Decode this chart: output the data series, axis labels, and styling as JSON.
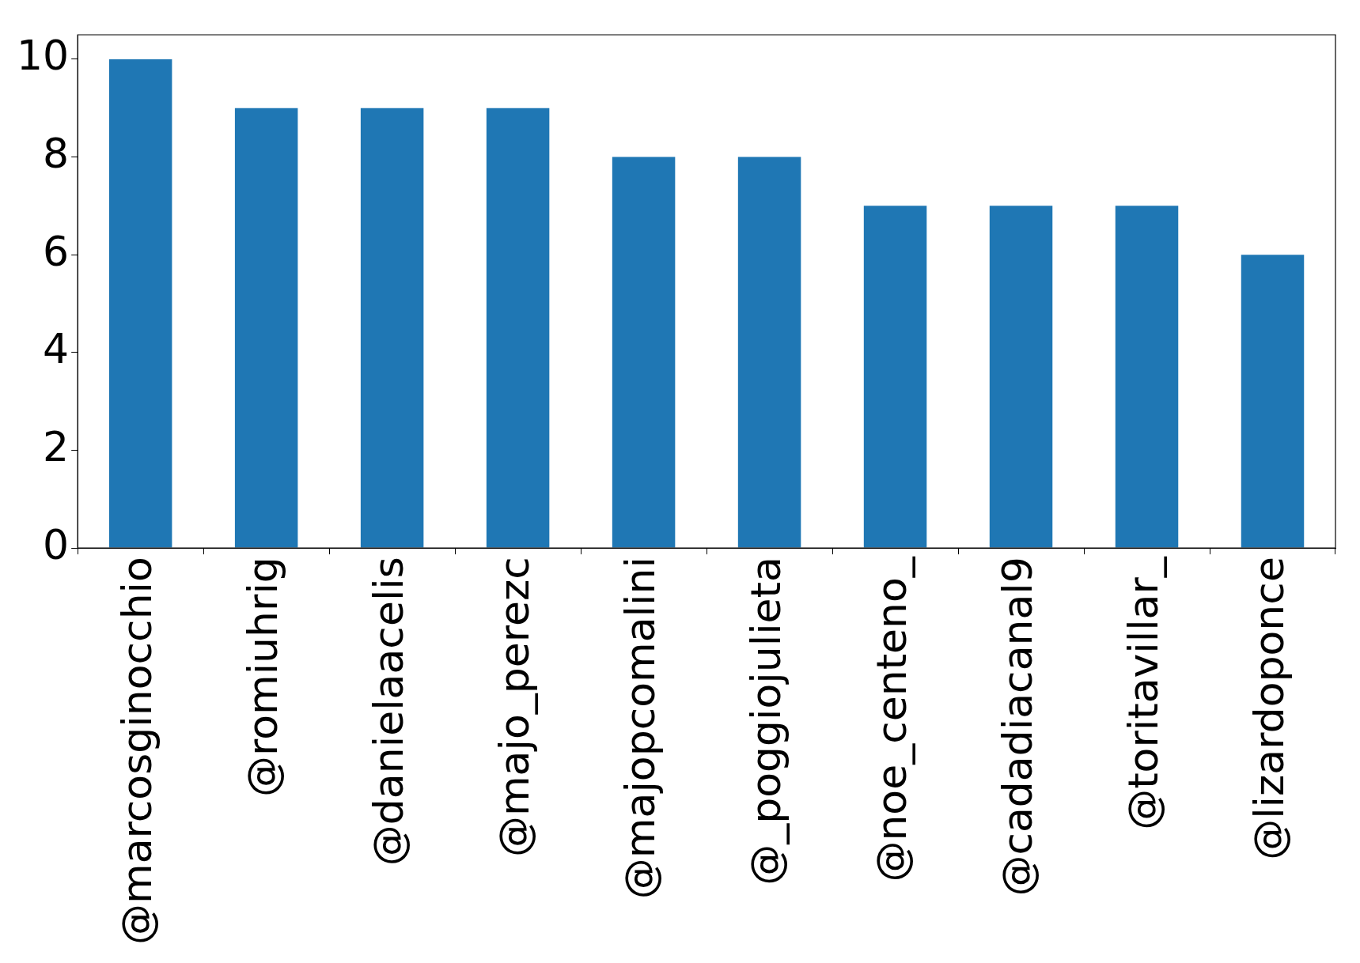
{
  "chart_data": {
    "type": "bar",
    "categories": [
      "@marcosginocchio",
      "@romiuhrig",
      "@danielaacelis",
      "@majo_perezc",
      "@majopcomalini",
      "@_poggiojulieta",
      "@noe_centeno_",
      "@cadadiacanal9",
      "@toritavillar_",
      "@lizardoponce"
    ],
    "values": [
      10,
      9,
      9,
      9,
      8,
      8,
      7,
      7,
      7,
      6
    ],
    "color": "#1f77b4",
    "ylim": [
      0,
      10.5
    ],
    "yticks": [
      0,
      2,
      4,
      6,
      8,
      10
    ],
    "grid": false,
    "legend": false
  }
}
